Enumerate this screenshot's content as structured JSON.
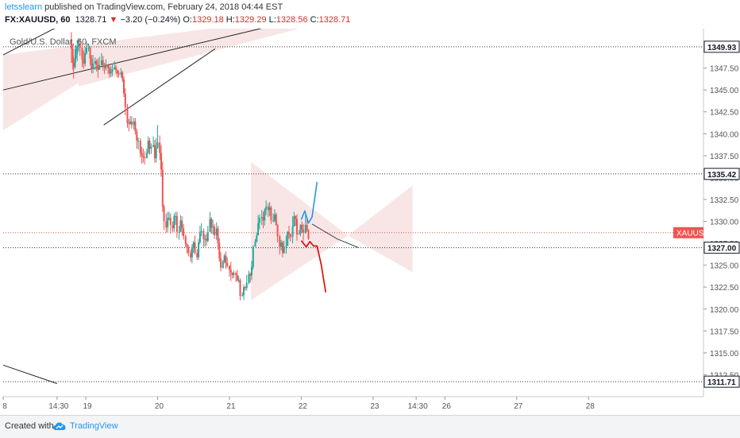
{
  "header": {
    "user": "letsslearn",
    "published_text": " published on TradingView.com, February 24, 2018 04:44 EST",
    "symbol": "FX:XAUUSD, 60",
    "last": "1328.71",
    "change": "−3.20 (−0.24%)",
    "o_label": "O:",
    "o": "1329.18",
    "h_label": "H:",
    "h": "1329.29",
    "l_label": "L:",
    "l": "1328.56",
    "c_label": "C:",
    "c": "1328.71"
  },
  "legend": "Gold/U.S. Dollar, 60, FXCM",
  "footer": {
    "created": "Created with",
    "brand": "TradingView"
  },
  "colors": {
    "up": "#26a69a",
    "down": "#ef5350",
    "pattern": "#f6dede",
    "blue_path": "#2196f3",
    "red_path": "#e00000"
  },
  "chart_data": {
    "type": "candlestick",
    "symbol": "XAUUSD",
    "timeframe": "60",
    "ylim": [
      1310,
      1352
    ],
    "xlim": [
      18.85,
      28.6
    ],
    "price_ticks": [
      1312.5,
      1315,
      1317.5,
      1320,
      1322.5,
      1325,
      1327.5,
      1330,
      1332.5,
      1335,
      1337.5,
      1340,
      1342.5,
      1345,
      1347.5
    ],
    "price_tick_labels": [
      "1312.50",
      "1315.00",
      "1317.50",
      "1320.00",
      "1322.50",
      "1325.00",
      "1327.50",
      "1330.00",
      "1332.50",
      "1335.00",
      "1337.50",
      "1340.00",
      "1342.50",
      "1345.00",
      "1347.50"
    ],
    "time_ticks": [
      {
        "x": 18.85,
        "label": "8"
      },
      {
        "x": 19.6,
        "label": "14:30"
      },
      {
        "x": 20,
        "label": "19"
      },
      {
        "x": 21,
        "label": "20"
      },
      {
        "x": 22,
        "label": "21"
      },
      {
        "x": 23,
        "label": "22"
      },
      {
        "x": 24,
        "label": "23"
      },
      {
        "x": 24.6,
        "label": "14:30"
      },
      {
        "x": 25,
        "label": "26"
      },
      {
        "x": 26,
        "label": "27"
      },
      {
        "x": 27,
        "label": "28"
      }
    ],
    "horizontal_levels": [
      {
        "y": 1349.93,
        "label": "1349.93"
      },
      {
        "y": 1335.42,
        "label": "1335.42"
      },
      {
        "y": 1327.0,
        "label": "1327.00"
      },
      {
        "y": 1311.71,
        "label": "1311.71"
      }
    ],
    "current_price": {
      "y": 1328.71,
      "label": "XAUUSD"
    },
    "candles": [
      [
        19.8,
        1350.8,
        1349.7,
        1351.6,
        1348.1
      ],
      [
        19.82,
        1349.7,
        1348.1,
        1350.2,
        1347.3
      ],
      [
        19.83,
        1348.1,
        1347.6,
        1348.8,
        1346.3
      ],
      [
        19.85,
        1347.6,
        1348.6,
        1349.7,
        1347.4
      ],
      [
        19.86,
        1348.6,
        1349.1,
        1350.1,
        1348.1
      ],
      [
        19.88,
        1349.1,
        1350.0,
        1350.7,
        1348.3
      ],
      [
        19.9,
        1350.0,
        1350.2,
        1350.9,
        1349.4
      ],
      [
        19.92,
        1350.2,
        1349.8,
        1350.8,
        1348.9
      ],
      [
        19.95,
        1349.8,
        1348.5,
        1350.3,
        1347.6
      ],
      [
        19.97,
        1348.5,
        1348.0,
        1349.5,
        1347.4
      ],
      [
        19.99,
        1348.0,
        1349.2,
        1349.9,
        1347.7
      ],
      [
        20.01,
        1349.2,
        1349.8,
        1350.5,
        1349.0
      ],
      [
        20.04,
        1349.8,
        1349.8,
        1350.3,
        1349.4
      ],
      [
        20.06,
        1349.8,
        1348.6,
        1350.0,
        1347.8
      ],
      [
        20.08,
        1348.6,
        1347.4,
        1349.0,
        1346.9
      ],
      [
        20.1,
        1347.4,
        1348.0,
        1349.0,
        1346.9
      ],
      [
        20.13,
        1348.0,
        1348.3,
        1348.7,
        1347.3
      ],
      [
        20.15,
        1348.3,
        1347.9,
        1348.5,
        1347.1
      ],
      [
        20.17,
        1347.9,
        1347.3,
        1348.6,
        1346.4
      ],
      [
        20.19,
        1347.3,
        1347.8,
        1348.8,
        1347.3
      ],
      [
        20.22,
        1347.8,
        1348.4,
        1349.2,
        1347.9
      ],
      [
        20.24,
        1348.4,
        1347.8,
        1348.9,
        1347.2
      ],
      [
        20.26,
        1347.8,
        1347.5,
        1348.1,
        1346.8
      ],
      [
        20.28,
        1347.5,
        1347.9,
        1348.5,
        1347.2
      ],
      [
        20.31,
        1347.9,
        1347.5,
        1348.0,
        1346.8
      ],
      [
        20.33,
        1347.5,
        1346.9,
        1347.8,
        1346.4
      ],
      [
        20.35,
        1346.9,
        1347.1,
        1347.7,
        1346.5
      ],
      [
        20.37,
        1347.1,
        1347.4,
        1348.0,
        1346.6
      ],
      [
        20.4,
        1347.4,
        1347.6,
        1348.3,
        1347.3
      ],
      [
        20.42,
        1347.6,
        1347.3,
        1347.9,
        1346.8
      ],
      [
        20.44,
        1347.3,
        1346.9,
        1347.3,
        1346.4
      ],
      [
        20.46,
        1346.9,
        1346.8,
        1347.2,
        1346.4
      ],
      [
        20.49,
        1346.8,
        1347.0,
        1347.5,
        1346.4
      ],
      [
        20.51,
        1347.0,
        1346.2,
        1347.2,
        1345.9
      ],
      [
        20.53,
        1346.2,
        1344.6,
        1346.6,
        1344.2
      ],
      [
        20.55,
        1344.6,
        1343.0,
        1345.2,
        1342.1
      ],
      [
        20.58,
        1343.0,
        1341.2,
        1343.4,
        1340.7
      ],
      [
        20.6,
        1341.2,
        1341.1,
        1341.7,
        1340.3
      ],
      [
        20.62,
        1341.1,
        1341.4,
        1342.0,
        1341.1
      ],
      [
        20.64,
        1341.4,
        1341.0,
        1342.0,
        1340.6
      ],
      [
        20.67,
        1341.0,
        1341.4,
        1341.8,
        1340.5
      ],
      [
        20.69,
        1341.4,
        1340.3,
        1341.8,
        1339.9
      ],
      [
        20.71,
        1340.3,
        1339.2,
        1340.6,
        1338.3
      ],
      [
        20.73,
        1339.2,
        1339.2,
        1339.6,
        1338.2
      ],
      [
        20.76,
        1339.2,
        1337.8,
        1339.5,
        1337.3
      ],
      [
        20.78,
        1337.8,
        1337.5,
        1338.5,
        1336.6
      ],
      [
        20.8,
        1337.5,
        1337.3,
        1338.3,
        1336.7
      ],
      [
        20.82,
        1337.3,
        1337.2,
        1338.0,
        1336.5
      ],
      [
        20.85,
        1337.2,
        1337.8,
        1338.3,
        1337.3
      ],
      [
        20.87,
        1337.8,
        1339.2,
        1339.7,
        1337.7
      ],
      [
        20.89,
        1339.2,
        1338.3,
        1339.5,
        1337.6
      ],
      [
        20.91,
        1338.3,
        1338.5,
        1338.9,
        1337.7
      ],
      [
        20.94,
        1338.5,
        1338.7,
        1339.7,
        1338.5
      ],
      [
        20.96,
        1338.7,
        1337.2,
        1339.3,
        1336.7
      ],
      [
        20.98,
        1337.2,
        1338.4,
        1339.5,
        1336.7
      ],
      [
        21.0,
        1338.4,
        1339.0,
        1341.0,
        1338.3
      ],
      [
        21.03,
        1339.0,
        1337.8,
        1339.8,
        1337.0
      ],
      [
        21.05,
        1337.8,
        1335.9,
        1338.7,
        1335.1
      ],
      [
        21.07,
        1335.9,
        1331.7,
        1336.8,
        1331.1
      ],
      [
        21.09,
        1331.7,
        1330.0,
        1331.9,
        1329.0
      ],
      [
        21.12,
        1330.0,
        1329.3,
        1330.9,
        1328.7
      ],
      [
        21.14,
        1329.3,
        1330.4,
        1331.1,
        1328.8
      ],
      [
        21.16,
        1330.4,
        1330.4,
        1331.1,
        1330.1
      ],
      [
        21.18,
        1330.4,
        1329.6,
        1330.9,
        1328.6
      ],
      [
        21.21,
        1329.6,
        1329.2,
        1330.0,
        1328.8
      ],
      [
        21.23,
        1329.2,
        1330.6,
        1330.9,
        1328.8
      ],
      [
        21.25,
        1330.6,
        1330.6,
        1331.1,
        1329.6
      ],
      [
        21.27,
        1330.6,
        1328.8,
        1331.1,
        1328.1
      ],
      [
        21.3,
        1328.8,
        1328.8,
        1329.5,
        1327.9
      ],
      [
        21.32,
        1328.8,
        1330.1,
        1330.7,
        1328.8
      ],
      [
        21.34,
        1330.1,
        1329.2,
        1330.6,
        1328.4
      ],
      [
        21.36,
        1329.2,
        1328.3,
        1329.7,
        1327.9
      ],
      [
        21.39,
        1328.3,
        1327.4,
        1328.5,
        1327.0
      ],
      [
        21.41,
        1327.4,
        1327.1,
        1327.5,
        1326.3
      ],
      [
        21.43,
        1327.1,
        1326.4,
        1327.3,
        1326.0
      ],
      [
        21.46,
        1326.4,
        1325.9,
        1326.8,
        1325.4
      ],
      [
        21.48,
        1325.9,
        1327.0,
        1327.4,
        1325.2
      ],
      [
        21.5,
        1327.0,
        1327.6,
        1327.8,
        1326.4
      ],
      [
        21.52,
        1327.6,
        1326.4,
        1328.4,
        1326.2
      ],
      [
        21.55,
        1326.4,
        1325.9,
        1326.8,
        1325.6
      ],
      [
        21.57,
        1325.9,
        1327.6,
        1328.0,
        1325.6
      ],
      [
        21.59,
        1327.6,
        1328.7,
        1329.5,
        1327.4
      ],
      [
        21.61,
        1328.7,
        1328.9,
        1329.8,
        1328.3
      ],
      [
        21.64,
        1328.9,
        1328.0,
        1329.2,
        1327.1
      ],
      [
        21.66,
        1328.0,
        1328.0,
        1328.5,
        1327.1
      ],
      [
        21.68,
        1328.0,
        1327.8,
        1328.6,
        1327.2
      ],
      [
        21.7,
        1327.8,
        1328.8,
        1329.5,
        1327.6
      ],
      [
        21.73,
        1328.8,
        1330.3,
        1331.1,
        1328.8
      ],
      [
        21.75,
        1330.3,
        1329.3,
        1330.5,
        1328.6
      ],
      [
        21.77,
        1329.3,
        1329.4,
        1330.2,
        1328.5
      ],
      [
        21.79,
        1329.4,
        1328.4,
        1329.7,
        1328.0
      ],
      [
        21.82,
        1328.4,
        1329.2,
        1329.9,
        1327.9
      ],
      [
        21.84,
        1329.2,
        1327.5,
        1329.5,
        1326.8
      ],
      [
        21.86,
        1327.5,
        1325.8,
        1328.1,
        1325.4
      ],
      [
        21.88,
        1325.8,
        1324.7,
        1326.5,
        1324.3
      ],
      [
        21.91,
        1324.7,
        1325.4,
        1325.6,
        1324.6
      ],
      [
        21.93,
        1325.4,
        1326.1,
        1326.3,
        1325.2
      ],
      [
        21.95,
        1326.1,
        1325.3,
        1326.6,
        1324.6
      ],
      [
        21.97,
        1325.3,
        1324.9,
        1325.9,
        1324.7
      ],
      [
        22.0,
        1324.9,
        1324.5,
        1325.0,
        1323.7
      ],
      [
        22.02,
        1324.5,
        1324.2,
        1325.4,
        1323.2
      ],
      [
        22.04,
        1324.2,
        1323.9,
        1324.2,
        1323.5
      ],
      [
        22.06,
        1323.9,
        1324.1,
        1324.4,
        1323.5
      ],
      [
        22.09,
        1324.1,
        1323.9,
        1324.3,
        1323.1
      ],
      [
        22.11,
        1323.9,
        1323.2,
        1324.5,
        1323.2
      ],
      [
        22.13,
        1323.2,
        1323.3,
        1323.8,
        1323.0
      ],
      [
        22.15,
        1323.3,
        1321.5,
        1323.5,
        1321.0
      ],
      [
        22.18,
        1321.5,
        1321.6,
        1321.9,
        1321.4
      ],
      [
        22.2,
        1321.6,
        1322.5,
        1322.8,
        1321.0
      ],
      [
        22.22,
        1322.5,
        1322.4,
        1322.6,
        1322.1
      ],
      [
        22.24,
        1322.4,
        1323.0,
        1323.9,
        1322.1
      ],
      [
        22.27,
        1323.0,
        1324.0,
        1324.4,
        1322.8
      ],
      [
        22.29,
        1324.0,
        1323.8,
        1324.2,
        1323.0
      ],
      [
        22.31,
        1323.8,
        1324.8,
        1325.5,
        1323.3
      ],
      [
        22.33,
        1324.8,
        1327.1,
        1327.3,
        1324.5
      ],
      [
        22.36,
        1327.1,
        1327.7,
        1328.0,
        1327.1
      ],
      [
        22.38,
        1327.7,
        1328.4,
        1328.7,
        1327.6
      ],
      [
        22.4,
        1328.4,
        1329.8,
        1330.7,
        1328.4
      ],
      [
        22.42,
        1329.8,
        1330.4,
        1330.8,
        1329.1
      ],
      [
        22.45,
        1330.4,
        1330.5,
        1331.3,
        1329.6
      ],
      [
        22.47,
        1330.5,
        1330.1,
        1331.1,
        1329.2
      ],
      [
        22.49,
        1330.1,
        1331.3,
        1331.5,
        1329.5
      ],
      [
        22.51,
        1331.3,
        1331.7,
        1332.4,
        1330.7
      ],
      [
        22.54,
        1331.7,
        1331.3,
        1332.1,
        1330.5
      ],
      [
        22.56,
        1331.3,
        1331.6,
        1332.2,
        1330.6
      ],
      [
        22.58,
        1331.6,
        1330.1,
        1331.8,
        1329.7
      ],
      [
        22.61,
        1330.1,
        1330.1,
        1330.9,
        1329.9
      ],
      [
        22.63,
        1330.1,
        1330.8,
        1331.4,
        1329.9
      ],
      [
        22.65,
        1330.8,
        1329.6,
        1331.0,
        1329.5
      ],
      [
        22.67,
        1329.6,
        1328.3,
        1329.7,
        1327.6
      ],
      [
        22.7,
        1328.3,
        1327.1,
        1328.5,
        1326.2
      ],
      [
        22.72,
        1327.1,
        1327.6,
        1327.9,
        1326.7
      ],
      [
        22.74,
        1327.6,
        1326.4,
        1327.8,
        1325.9
      ],
      [
        22.76,
        1326.4,
        1327.1,
        1327.8,
        1326.3
      ],
      [
        22.79,
        1327.1,
        1327.2,
        1328.4,
        1326.3
      ],
      [
        22.81,
        1327.2,
        1328.8,
        1328.9,
        1327.2
      ],
      [
        22.83,
        1328.8,
        1328.6,
        1329.5,
        1328.0
      ],
      [
        22.85,
        1328.6,
        1328.2,
        1328.6,
        1327.7
      ],
      [
        22.88,
        1328.2,
        1329.4,
        1330.6,
        1327.5
      ],
      [
        22.9,
        1329.4,
        1330.6,
        1331.1,
        1329.4
      ],
      [
        22.92,
        1330.6,
        1330.3,
        1330.7,
        1329.5
      ],
      [
        22.94,
        1330.3,
        1328.5,
        1330.8,
        1327.8
      ],
      [
        22.97,
        1328.5,
        1328.6,
        1329.0,
        1328.5
      ],
      [
        22.99,
        1328.6,
        1329.6,
        1329.7,
        1328.3
      ],
      [
        23.01,
        1329.6,
        1329.1,
        1330.0,
        1328.7
      ],
      [
        23.03,
        1329.1,
        1328.7,
        1329.7,
        1327.7
      ],
      [
        23.06,
        1328.7,
        1329.6,
        1330.8,
        1328.6
      ],
      [
        23.08,
        1329.6,
        1329.0,
        1330.2,
        1328.8
      ],
      [
        23.1,
        1329.0,
        1328.0,
        1329.1,
        1327.9
      ]
    ],
    "channel": {
      "upper": [
        [
          18.85,
          1349.0
        ],
        [
          20.15,
          1354.5
        ]
      ],
      "lower": [
        [
          18.85,
          1345.0
        ],
        [
          23.25,
          1353.6
        ]
      ],
      "fill": [
        [
          18.85,
          1349.0
        ],
        [
          23.25,
          1353.6
        ],
        [
          23.25,
          1352.6
        ],
        [
          19.9,
          1345.4
        ],
        [
          19.9,
          1345.8
        ],
        [
          18.85,
          1340.4
        ]
      ]
    },
    "channel_line": [
      [
        20.25,
        1341.0
      ],
      [
        21.8,
        1349.7
      ]
    ],
    "old_channel_line": [
      [
        18.85,
        1313.6
      ],
      [
        19.6,
        1311.5
      ]
    ],
    "triangle_left": [
      [
        22.3,
        1336.8
      ],
      [
        23.65,
        1328.4
      ],
      [
        22.3,
        1321.0
      ]
    ],
    "triangle_right": [
      [
        23.65,
        1328.4
      ],
      [
        24.55,
        1334.1
      ],
      [
        24.55,
        1324.2
      ]
    ],
    "resistance_line": [
      [
        23.15,
        1329.7
      ],
      [
        23.5,
        1328.0
      ],
      [
        23.8,
        1327.0
      ]
    ],
    "blue_projection": [
      [
        23.0,
        1330.2
      ],
      [
        23.05,
        1331.2
      ],
      [
        23.1,
        1329.8
      ],
      [
        23.15,
        1330.5
      ],
      [
        23.22,
        1334.5
      ]
    ],
    "red_projection": [
      [
        23.0,
        1327.8
      ],
      [
        23.07,
        1327.1
      ],
      [
        23.12,
        1327.7
      ],
      [
        23.17,
        1327.2
      ],
      [
        23.22,
        1327.2
      ],
      [
        23.28,
        1325.0
      ],
      [
        23.34,
        1321.9
      ]
    ]
  }
}
